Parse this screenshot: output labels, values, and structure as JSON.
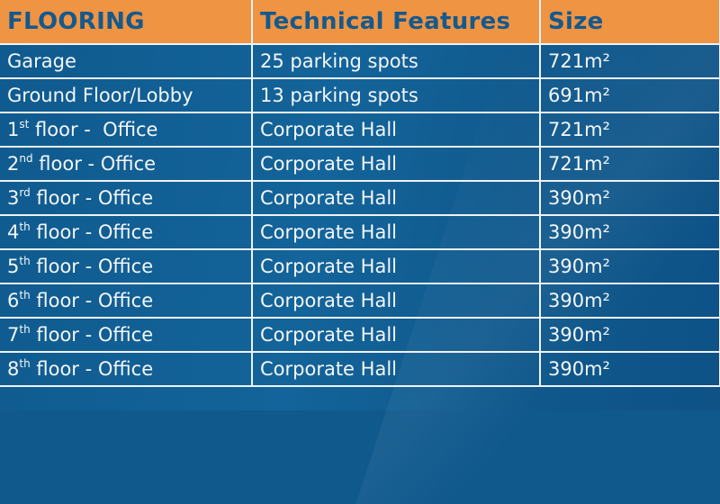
{
  "table": {
    "headers": [
      "FLOORING",
      "Technical Features",
      "Size"
    ],
    "rows": [
      {
        "floor": "Garage",
        "floor_sup": "",
        "floor_rest": "",
        "features": "25 parking spots",
        "size": "721m²"
      },
      {
        "floor": "Ground Floor/Lobby",
        "floor_sup": "",
        "floor_rest": "",
        "features": "13 parking spots",
        "size": "691m²"
      },
      {
        "floor": "1",
        "floor_sup": "st",
        "floor_rest": " floor -  Office",
        "features": "Corporate Hall",
        "size": "721m²"
      },
      {
        "floor": "2",
        "floor_sup": "nd",
        "floor_rest": " floor - Office",
        "features": "Corporate Hall",
        "size": "721m²"
      },
      {
        "floor": "3",
        "floor_sup": "rd",
        "floor_rest": " floor - Office",
        "features": "Corporate Hall",
        "size": "390m²"
      },
      {
        "floor": "4",
        "floor_sup": "th",
        "floor_rest": " floor - Office",
        "features": "Corporate Hall",
        "size": "390m²"
      },
      {
        "floor": "5",
        "floor_sup": "th",
        "floor_rest": " floor - Office",
        "features": "Corporate Hall",
        "size": "390m²"
      },
      {
        "floor": "6",
        "floor_sup": "th",
        "floor_rest": " floor - Office",
        "features": "Corporate Hall",
        "size": "390m²"
      },
      {
        "floor": "7",
        "floor_sup": "th",
        "floor_rest": " floor - Office",
        "features": "Corporate Hall",
        "size": "390m²"
      },
      {
        "floor": "8",
        "floor_sup": "th",
        "floor_rest": " floor - Office",
        "features": "Corporate Hall",
        "size": "390m²"
      }
    ]
  },
  "colors": {
    "header_bg": "#ee9443",
    "header_text": "#15598d",
    "body_bg": "#10598d",
    "body_text": "#f4f6f8",
    "grid": "#f0f2f4"
  }
}
